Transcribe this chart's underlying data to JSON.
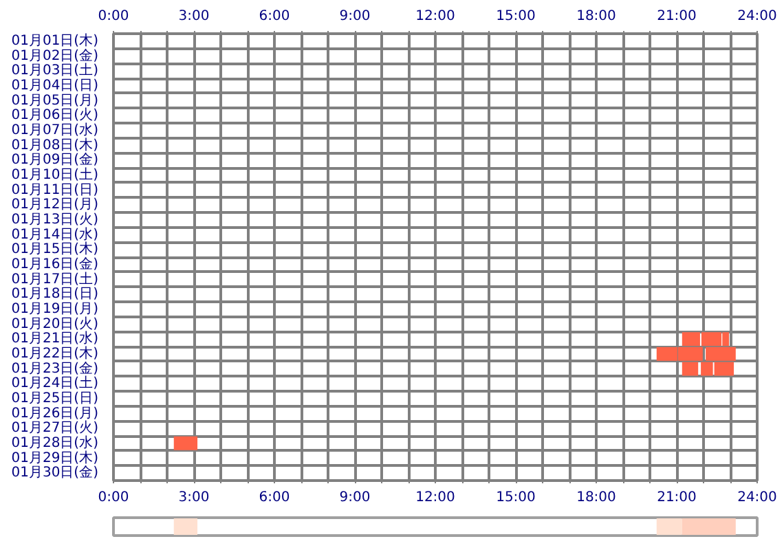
{
  "chart_data": [
    {
      "type": "bar",
      "orientation": "horizontal",
      "grid": true,
      "categories": [
        "01月01日(木)",
        "01月02日(金)",
        "01月03日(土)",
        "01月04日(日)",
        "01月05日(月)",
        "01月06日(火)",
        "01月07日(水)",
        "01月08日(木)",
        "01月09日(金)",
        "01月10日(土)",
        "01月11日(日)",
        "01月12日(月)",
        "01月13日(火)",
        "01月14日(水)",
        "01月15日(木)",
        "01月16日(金)",
        "01月17日(土)",
        "01月18日(日)",
        "01月19日(月)",
        "01月20日(火)",
        "01月21日(水)",
        "01月22日(木)",
        "01月23日(金)",
        "01月24日(土)",
        "01月25日(日)",
        "01月26日(月)",
        "01月27日(火)",
        "01月28日(水)",
        "01月29日(木)",
        "01月30日(金)"
      ],
      "xlim": [
        0,
        24
      ],
      "x2lim": [
        0,
        24
      ],
      "xticks": [
        {
          "value": 0,
          "label": "0:00"
        },
        {
          "value": 1,
          "label": null
        },
        {
          "value": 2,
          "label": null
        },
        {
          "value": 3,
          "label": "3:00"
        },
        {
          "value": 4,
          "label": null
        },
        {
          "value": 5,
          "label": null
        },
        {
          "value": 6,
          "label": "6:00"
        },
        {
          "value": 7,
          "label": null
        },
        {
          "value": 8,
          "label": null
        },
        {
          "value": 9,
          "label": "9:00"
        },
        {
          "value": 10,
          "label": null
        },
        {
          "value": 11,
          "label": null
        },
        {
          "value": 12,
          "label": "12:00"
        },
        {
          "value": 13,
          "label": null
        },
        {
          "value": 14,
          "label": null
        },
        {
          "value": 15,
          "label": "15:00"
        },
        {
          "value": 16,
          "label": null
        },
        {
          "value": 17,
          "label": null
        },
        {
          "value": 18,
          "label": "18:00"
        },
        {
          "value": 19,
          "label": null
        },
        {
          "value": 20,
          "label": null
        },
        {
          "value": 21,
          "label": "21:00"
        },
        {
          "value": 22,
          "label": null
        },
        {
          "value": 23,
          "label": null
        },
        {
          "value": 24,
          "label": "24:00"
        }
      ],
      "x2ticks": [
        {
          "value": 0,
          "label": "0:00"
        },
        {
          "value": 1,
          "label": null
        },
        {
          "value": 2,
          "label": null
        },
        {
          "value": 3,
          "label": "3:00"
        },
        {
          "value": 4,
          "label": null
        },
        {
          "value": 5,
          "label": null
        },
        {
          "value": 6,
          "label": "6:00"
        },
        {
          "value": 7,
          "label": null
        },
        {
          "value": 8,
          "label": null
        },
        {
          "value": 9,
          "label": "9:00"
        },
        {
          "value": 10,
          "label": null
        },
        {
          "value": 11,
          "label": null
        },
        {
          "value": 12,
          "label": "12:00"
        },
        {
          "value": 13,
          "label": null
        },
        {
          "value": 14,
          "label": null
        },
        {
          "value": 15,
          "label": "15:00"
        },
        {
          "value": 16,
          "label": null
        },
        {
          "value": 17,
          "label": null
        },
        {
          "value": 18,
          "label": "18:00"
        },
        {
          "value": 19,
          "label": null
        },
        {
          "value": 20,
          "label": null
        },
        {
          "value": 21,
          "label": "21:00"
        },
        {
          "value": 22,
          "label": null
        },
        {
          "value": 23,
          "label": null
        },
        {
          "value": 24,
          "label": "24:00"
        }
      ],
      "series": [
        {
          "color": "#ff6347",
          "base": [
            null,
            null,
            null,
            null,
            null,
            null,
            null,
            null,
            null,
            null,
            null,
            null,
            null,
            null,
            null,
            null,
            null,
            null,
            null,
            null,
            21.2,
            20.25,
            21.2,
            null,
            null,
            null,
            null,
            2.25,
            null,
            null
          ],
          "values": [
            null,
            null,
            null,
            null,
            null,
            null,
            null,
            null,
            null,
            null,
            null,
            null,
            null,
            null,
            null,
            null,
            null,
            null,
            null,
            null,
            0.67,
            0.78,
            0.6,
            null,
            null,
            null,
            null,
            0.88,
            null,
            null
          ]
        },
        {
          "color": "#ff6347",
          "base": [
            null,
            null,
            null,
            null,
            null,
            null,
            null,
            null,
            null,
            null,
            null,
            null,
            null,
            null,
            null,
            null,
            null,
            null,
            null,
            null,
            21.92,
            21.05,
            21.9,
            null,
            null,
            null,
            null,
            null,
            null,
            null
          ],
          "values": [
            null,
            null,
            null,
            null,
            null,
            null,
            null,
            null,
            null,
            null,
            null,
            null,
            null,
            null,
            null,
            null,
            null,
            null,
            null,
            null,
            0.75,
            0.92,
            0.45,
            null,
            null,
            null,
            null,
            null,
            null,
            null
          ]
        },
        {
          "color": "#ff6347",
          "base": [
            null,
            null,
            null,
            null,
            null,
            null,
            null,
            null,
            null,
            null,
            null,
            null,
            null,
            null,
            null,
            null,
            null,
            null,
            null,
            null,
            22.7,
            22.08,
            22.4,
            null,
            null,
            null,
            null,
            null,
            null,
            null
          ],
          "values": [
            null,
            null,
            null,
            null,
            null,
            null,
            null,
            null,
            null,
            null,
            null,
            null,
            null,
            null,
            null,
            null,
            null,
            null,
            null,
            null,
            0.25,
            1.12,
            0.73,
            null,
            null,
            null,
            null,
            null,
            null,
            null
          ]
        }
      ]
    },
    {
      "type": "bar",
      "orientation": "horizontal",
      "tick_labels": false,
      "categories": [
        null
      ],
      "xlim": [
        0,
        24
      ],
      "xticks": [
        {
          "value": 0,
          "label": null
        },
        {
          "value": 3,
          "label": null
        },
        {
          "value": 6,
          "label": null
        },
        {
          "value": 9,
          "label": null
        },
        {
          "value": 12,
          "label": null
        },
        {
          "value": 15,
          "label": null
        },
        {
          "value": 18,
          "label": null
        },
        {
          "value": 21,
          "label": null
        },
        {
          "value": 24,
          "label": null
        }
      ],
      "series": [
        {
          "color": "#ffe0d0",
          "base": [
            2.25
          ],
          "values": [
            0.88
          ]
        },
        {
          "color": "#ffe0d0",
          "base": [
            20.25
          ],
          "values": [
            0.95
          ]
        },
        {
          "color": "#ffcfbd",
          "base": [
            21.2
          ],
          "values": [
            2.0
          ]
        }
      ]
    }
  ]
}
